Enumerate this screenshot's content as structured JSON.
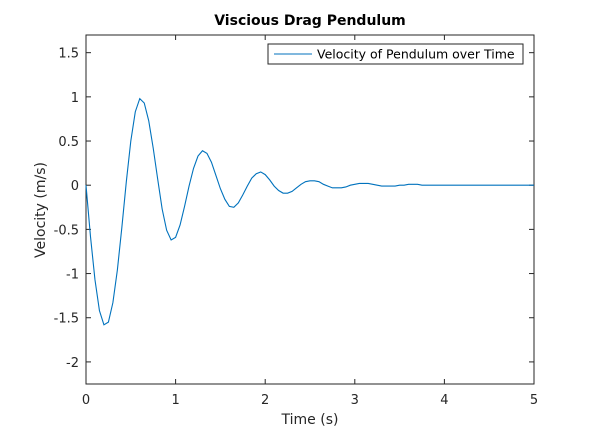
{
  "chart_data": {
    "type": "line",
    "title": "Viscious Drag Pendulum",
    "xlabel": "Time (s)",
    "ylabel": "Velocity (m/s)",
    "xlim": [
      0,
      5
    ],
    "ylim": [
      -2.25,
      1.7
    ],
    "xticks": [
      0,
      1,
      2,
      3,
      4,
      5
    ],
    "xtick_labels": [
      "0",
      "1",
      "2",
      "3",
      "4",
      "5"
    ],
    "yticks": [
      1.5,
      1,
      0.5,
      0,
      -0.5,
      -1,
      -1.5,
      -2
    ],
    "ytick_labels": [
      "1.5",
      "1",
      "0.5",
      "0",
      "-0.5",
      "-1",
      "-1.5",
      "-2"
    ],
    "grid": false,
    "legend_position": "top-right",
    "series": [
      {
        "name": "Velocity of Pendulum over Time",
        "color": "#0072bd",
        "x": [
          0,
          0.05,
          0.1,
          0.15,
          0.2,
          0.25,
          0.3,
          0.35,
          0.4,
          0.45,
          0.5,
          0.55,
          0.6,
          0.65,
          0.7,
          0.75,
          0.8,
          0.85,
          0.9,
          0.95,
          1.0,
          1.05,
          1.1,
          1.15,
          1.2,
          1.25,
          1.3,
          1.35,
          1.4,
          1.45,
          1.5,
          1.55,
          1.6,
          1.65,
          1.7,
          1.75,
          1.8,
          1.85,
          1.9,
          1.95,
          2.0,
          2.05,
          2.1,
          2.15,
          2.2,
          2.25,
          2.3,
          2.35,
          2.4,
          2.45,
          2.5,
          2.55,
          2.6,
          2.65,
          2.7,
          2.75,
          2.8,
          2.85,
          2.9,
          2.95,
          3.0,
          3.05,
          3.1,
          3.15,
          3.2,
          3.25,
          3.3,
          3.35,
          3.4,
          3.45,
          3.5,
          3.55,
          3.6,
          3.65,
          3.7,
          3.75,
          3.8,
          3.85,
          3.9,
          3.95,
          4.0,
          4.05,
          4.1,
          4.15,
          4.2,
          4.25,
          4.3,
          4.35,
          4.4,
          4.45,
          4.5,
          4.55,
          4.6,
          4.65,
          4.7,
          4.75,
          4.8,
          4.85,
          4.9,
          4.95,
          5.0
        ],
        "values": [
          0,
          -0.58,
          -1.07,
          -1.42,
          -1.58,
          -1.55,
          -1.33,
          -0.96,
          -0.48,
          0.04,
          0.5,
          0.83,
          0.98,
          0.93,
          0.73,
          0.42,
          0.07,
          -0.27,
          -0.51,
          -0.62,
          -0.59,
          -0.45,
          -0.24,
          -0.01,
          0.19,
          0.33,
          0.39,
          0.36,
          0.26,
          0.11,
          -0.04,
          -0.16,
          -0.24,
          -0.25,
          -0.2,
          -0.11,
          -0.01,
          0.08,
          0.13,
          0.15,
          0.12,
          0.06,
          -0.01,
          -0.06,
          -0.09,
          -0.09,
          -0.07,
          -0.03,
          0.01,
          0.04,
          0.05,
          0.05,
          0.04,
          0.01,
          -0.01,
          -0.03,
          -0.03,
          -0.03,
          -0.02,
          0.0,
          0.01,
          0.02,
          0.02,
          0.02,
          0.01,
          0.0,
          -0.01,
          -0.01,
          -0.01,
          -0.01,
          0.0,
          0.0,
          0.01,
          0.01,
          0.01,
          0.0,
          0.0,
          0.0,
          0.0,
          0.0,
          0.0,
          0.0,
          0.0,
          0.0,
          0.0,
          0.0,
          0.0,
          0.0,
          0.0,
          0.0,
          0.0,
          0.0,
          0.0,
          0.0,
          0.0,
          0.0,
          0.0,
          0.0,
          0.0,
          0.0,
          0.0
        ]
      }
    ]
  }
}
